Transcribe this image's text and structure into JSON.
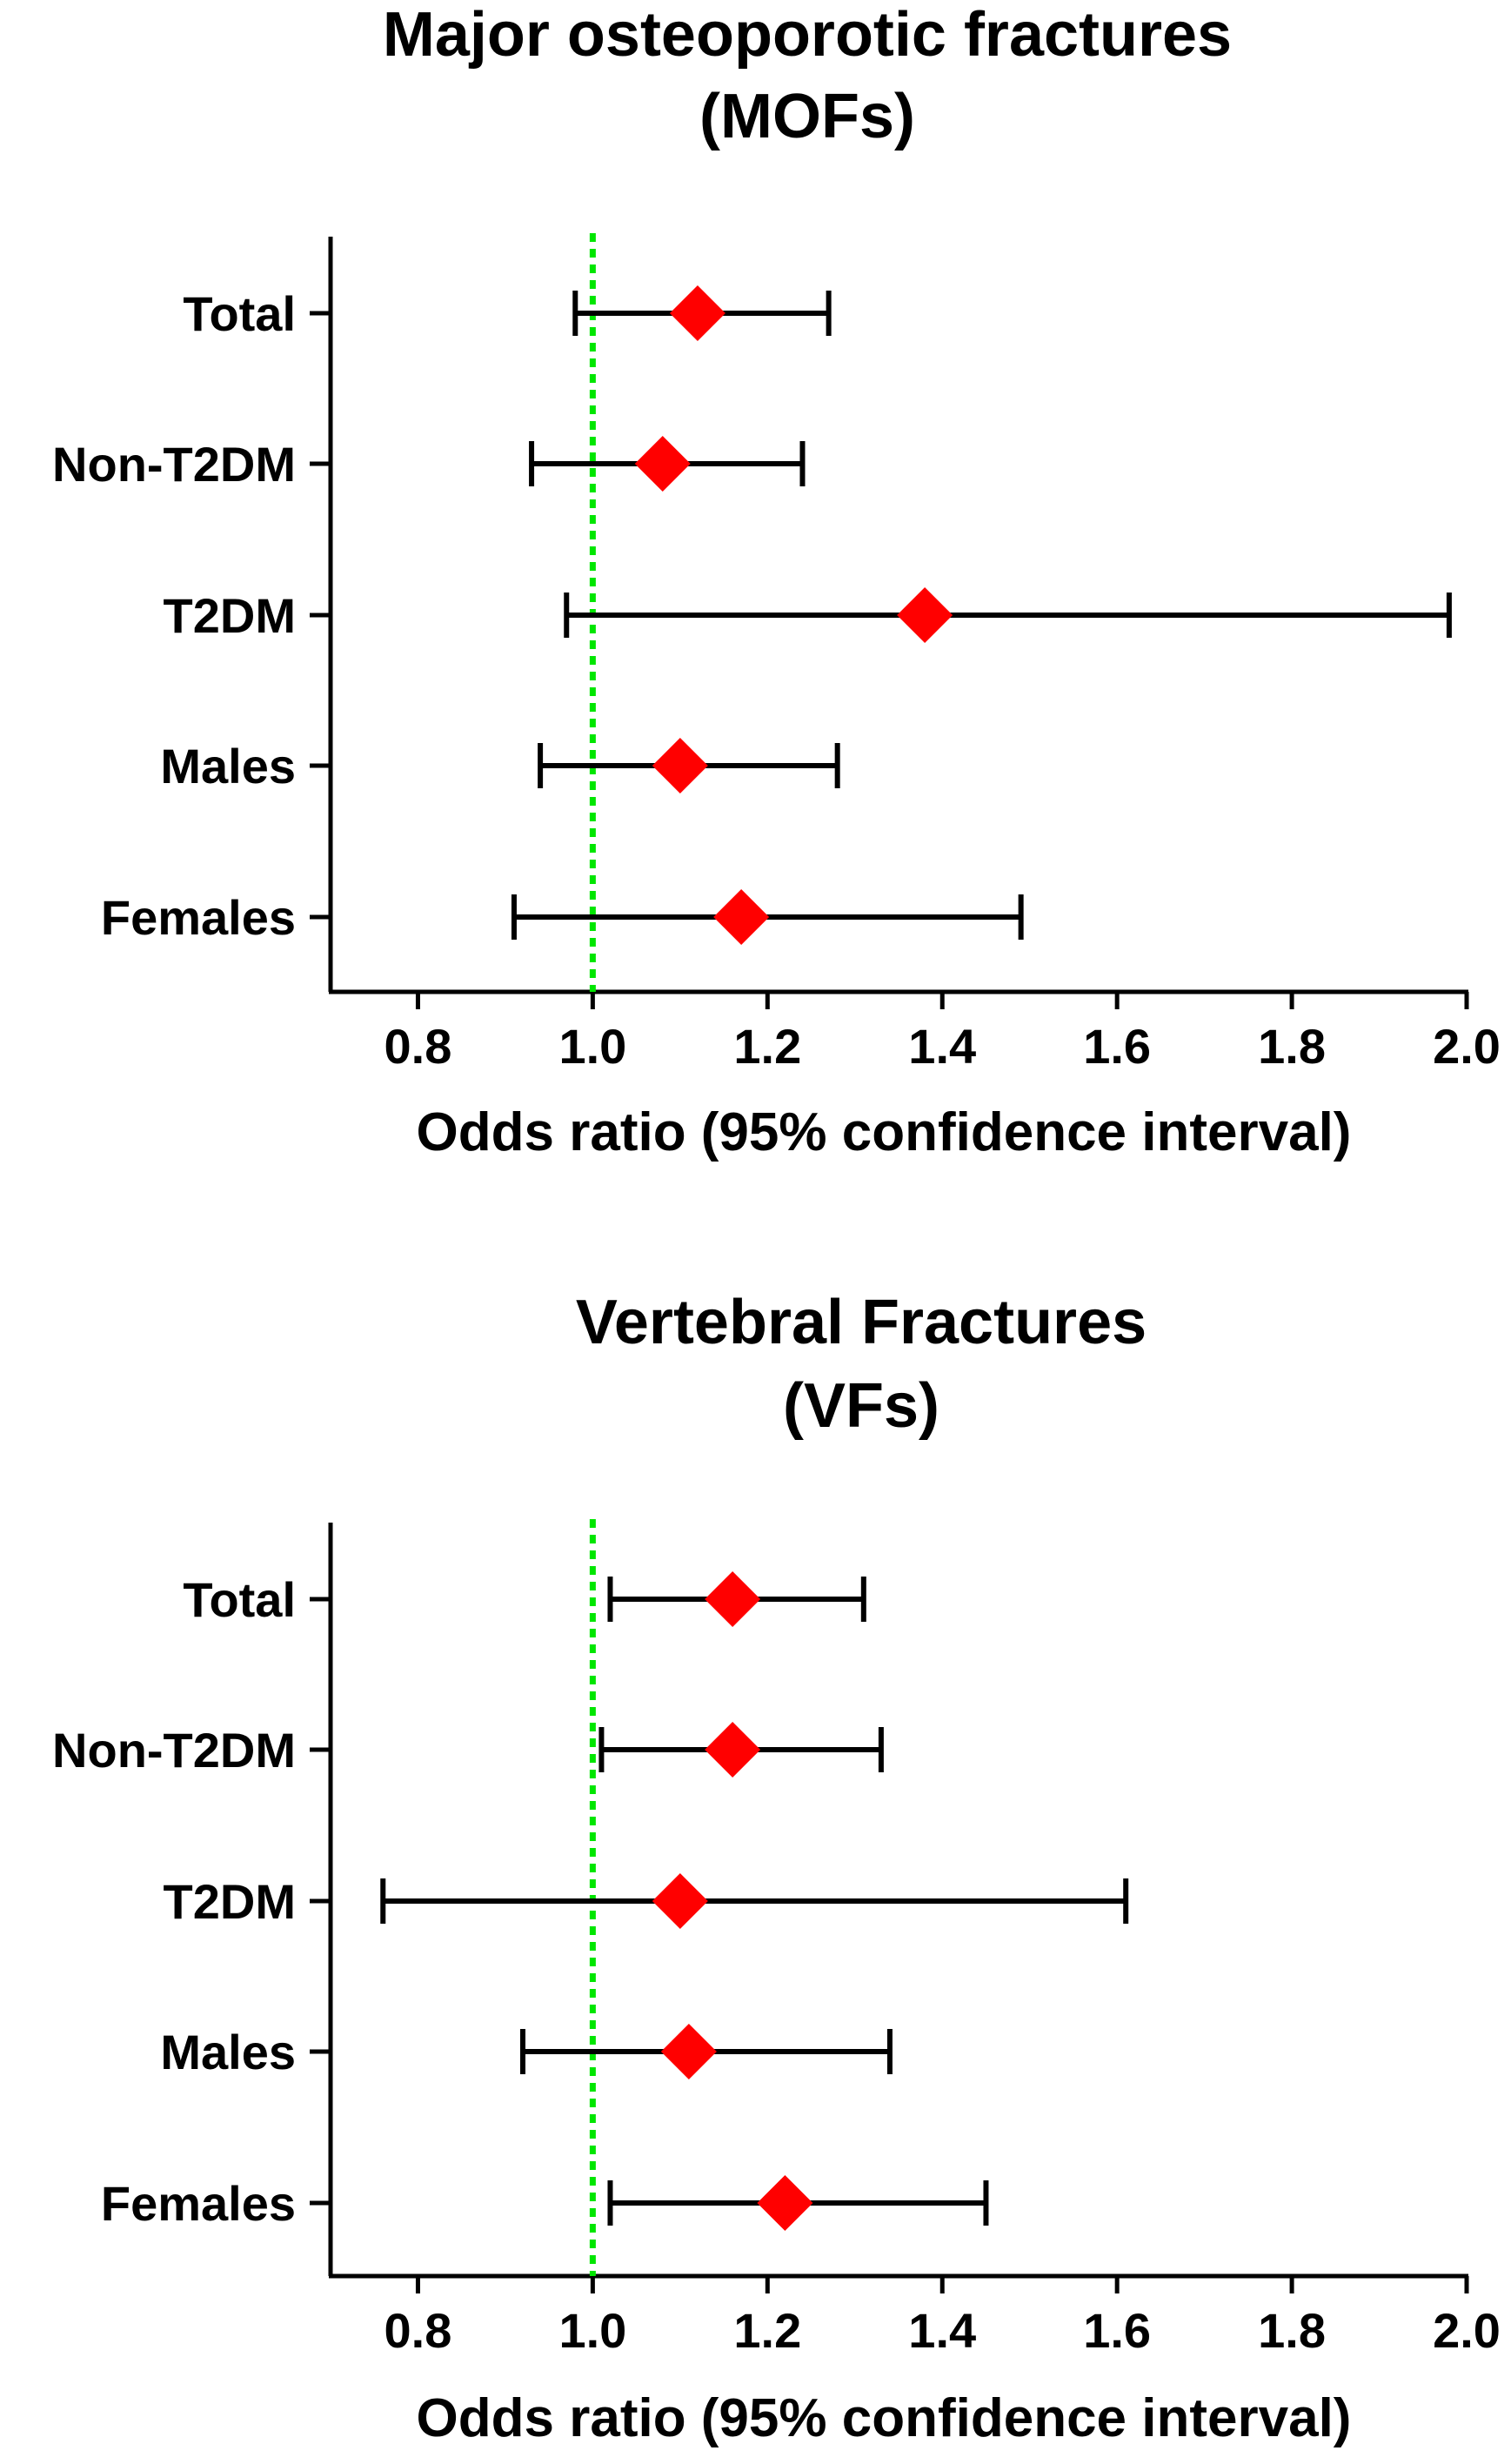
{
  "chart_data": [
    {
      "type": "forest",
      "title": "Major osteoporotic fractures",
      "subtitle": "(MOFs)",
      "xlabel": "Odds ratio (95% confidence interval)",
      "xlim": [
        0.7,
        2.0
      ],
      "xticks": [
        "0.8",
        "1.0",
        "1.2",
        "1.4",
        "1.6",
        "1.8",
        "2.0"
      ],
      "reference_line": 1.0,
      "reference_color": "#00e600",
      "marker_color": "#ff0000",
      "categories": [
        "Total",
        "Non-T2DM",
        "T2DM",
        "Males",
        "Females"
      ],
      "or": [
        1.12,
        1.08,
        1.38,
        1.1,
        1.17
      ],
      "lower": [
        0.98,
        0.93,
        0.97,
        0.94,
        0.91
      ],
      "upper": [
        1.27,
        1.24,
        1.98,
        1.28,
        1.49
      ]
    },
    {
      "type": "forest",
      "title": "Vertebral Fractures",
      "subtitle": "(VFs)",
      "xlabel": "Odds ratio (95% confidence interval)",
      "xlim": [
        0.7,
        2.0
      ],
      "xticks": [
        "0.8",
        "1.0",
        "1.2",
        "1.4",
        "1.6",
        "1.8",
        "2.0"
      ],
      "reference_line": 1.0,
      "reference_color": "#00e600",
      "marker_color": "#ff0000",
      "categories": [
        "Total",
        "Non-T2DM",
        "T2DM",
        "Males",
        "Females"
      ],
      "or": [
        1.16,
        1.16,
        1.1,
        1.11,
        1.22
      ],
      "lower": [
        1.02,
        1.01,
        0.76,
        0.92,
        1.02
      ],
      "upper": [
        1.31,
        1.33,
        1.61,
        1.34,
        1.45
      ]
    }
  ]
}
